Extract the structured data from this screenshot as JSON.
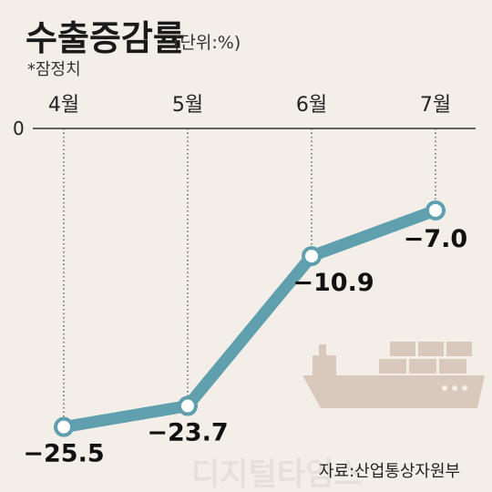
{
  "title": "수출증감률",
  "unit": "(단위:%)",
  "note": "*잠정치",
  "source": "자료:산업통상자원부",
  "watermark": "디지털타임스",
  "colors": {
    "background": "#f3efe8",
    "line": "#5f9fae",
    "ship": "#d9c9bd",
    "text": "#1a1a1a"
  },
  "chart_data": {
    "type": "line",
    "categories": [
      "4월",
      "5월",
      "6월",
      "7월"
    ],
    "series": [
      {
        "values": [
          -25.5,
          -23.7,
          -10.9,
          -7.0
        ]
      }
    ],
    "value_labels": [
      "−25.5",
      "−23.7",
      "−10.9",
      "−7.0"
    ],
    "y_tick_labels": [
      "0"
    ],
    "ylim": [
      -28,
      0
    ],
    "grid": false,
    "legend": "none"
  }
}
